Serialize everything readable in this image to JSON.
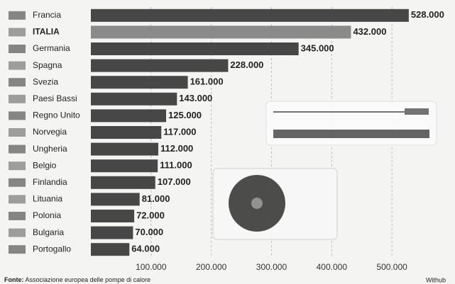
{
  "chart_data": {
    "type": "hbar",
    "categories": [
      "Francia",
      "ITALIA",
      "Germania",
      "Spagna",
      "Svezia",
      "Paesi Bassi",
      "Regno Unito",
      "Norvegia",
      "Ungheria",
      "Belgio",
      "Finlandia",
      "Lituania",
      "Polonia",
      "Bulgaria",
      "Portogallo"
    ],
    "values": [
      528000,
      432000,
      345000,
      228000,
      161000,
      143000,
      125000,
      117000,
      112000,
      111000,
      107000,
      81000,
      72000,
      70000,
      64000
    ],
    "value_labels": [
      "528.000",
      "432.000",
      "345.000",
      "228.000",
      "161.000",
      "143.000",
      "125.000",
      "117.000",
      "112.000",
      "111.000",
      "107.000",
      "81.000",
      "72.000",
      "70.000",
      "64.000"
    ],
    "colors": [
      "#474747",
      "#8a8a8a",
      "#474747",
      "#474747",
      "#474747",
      "#474747",
      "#474747",
      "#474747",
      "#474747",
      "#474747",
      "#474747",
      "#474747",
      "#474747",
      "#474747",
      "#474747"
    ],
    "highlight": "ITALIA",
    "xlim": [
      0,
      580000
    ],
    "xticks": [
      {
        "value": 100000,
        "label": "100.000"
      },
      {
        "value": 200000,
        "label": "200.000"
      },
      {
        "value": 300000,
        "label": "300.000"
      },
      {
        "value": 400000,
        "label": "400.000"
      },
      {
        "value": 500000,
        "label": "500.000"
      }
    ],
    "grid": true,
    "source_label": "Fonte:",
    "source": "Associazione europea delle pompe di calore",
    "credit": "Withub"
  }
}
